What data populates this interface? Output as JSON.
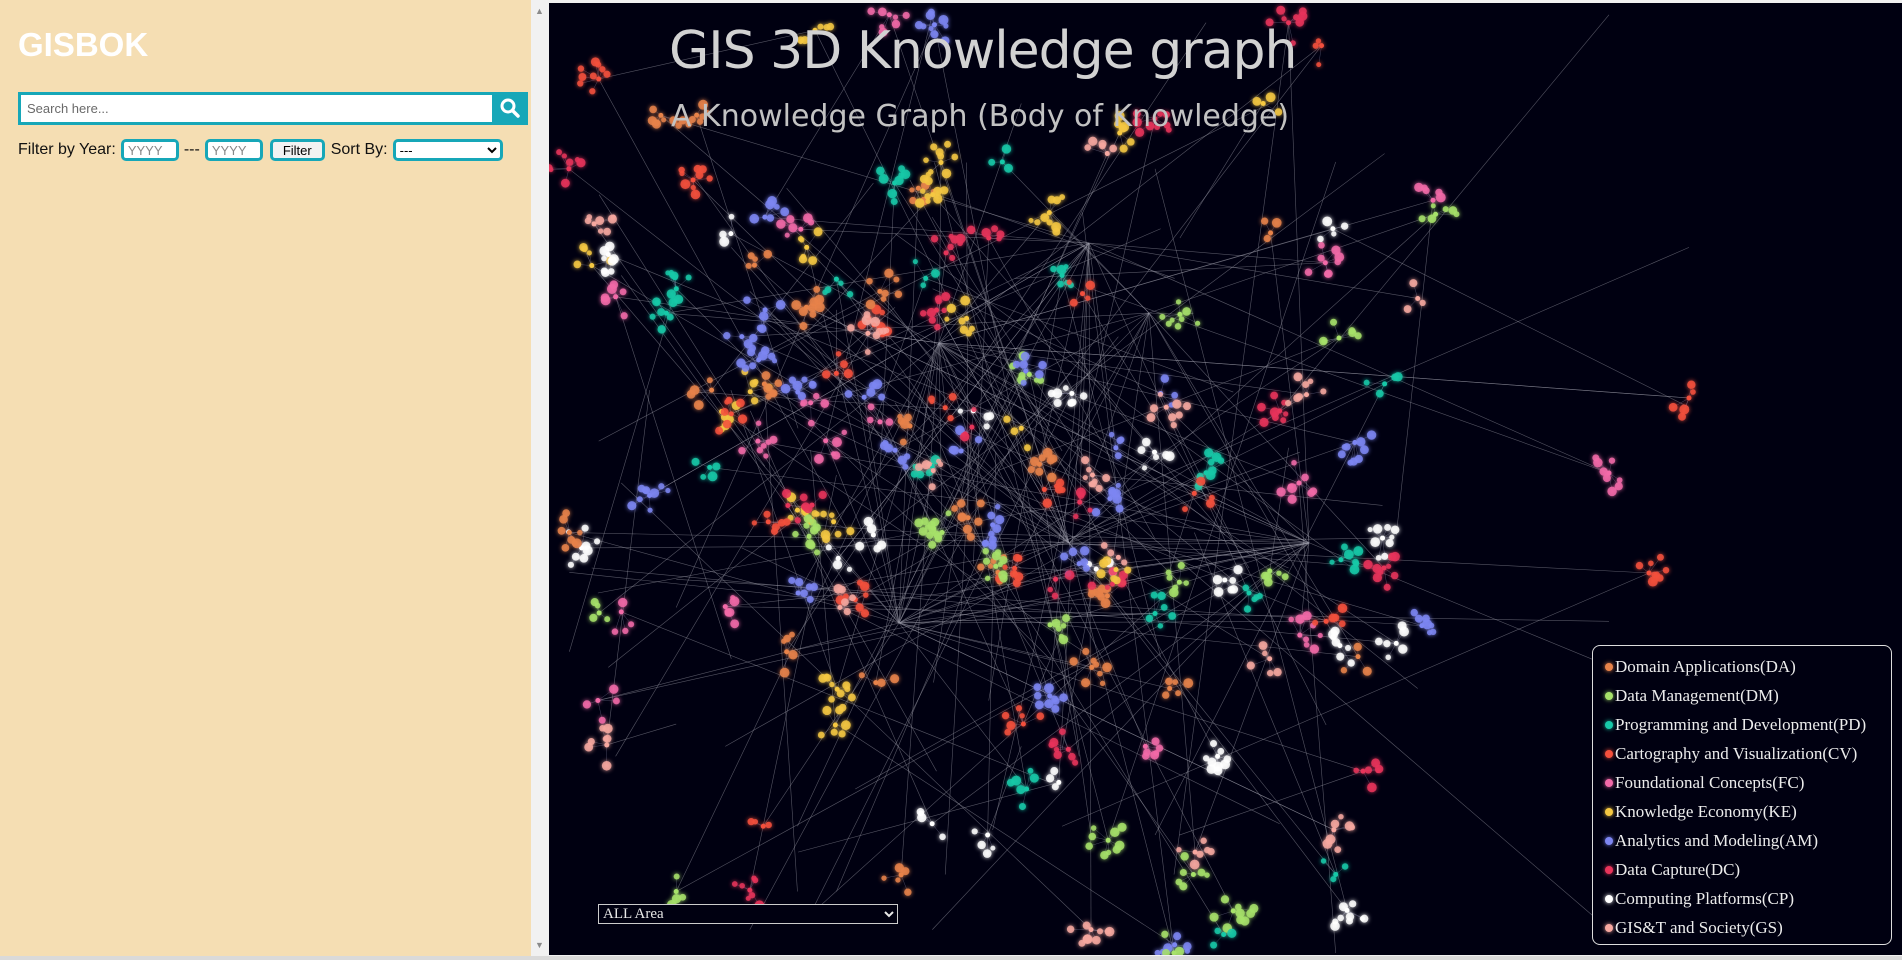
{
  "sidebar": {
    "brand": "GISBOK",
    "search": {
      "placeholder": "Search here...",
      "value": ""
    },
    "filter": {
      "label": "Filter by Year:",
      "year_from_placeholder": "YYYY",
      "separator": "---",
      "year_to_placeholder": "YYYY",
      "button_label": "Filter",
      "sort_label": "Sort By:",
      "sort_selected": "---"
    }
  },
  "graph": {
    "title": "GIS 3D Knowledge graph",
    "subtitle": "A Knowledge Graph (Body of Knowledge)",
    "area_select": {
      "selected": "ALL Area"
    },
    "legend": [
      {
        "label": "Domain Applications(DA)",
        "color": "#e8834a"
      },
      {
        "label": "Data Management(DM)",
        "color": "#a7e26a"
      },
      {
        "label": "Programming and Development(PD)",
        "color": "#18c9a8"
      },
      {
        "label": "Cartography and Visualization(CV)",
        "color": "#f4503c"
      },
      {
        "label": "Foundational Concepts(FC)",
        "color": "#f26aa8"
      },
      {
        "label": "Knowledge Economy(KE)",
        "color": "#f5c842"
      },
      {
        "label": "Analytics and Modeling(AM)",
        "color": "#7d86f2"
      },
      {
        "label": "Data Capture(DC)",
        "color": "#e8345a"
      },
      {
        "label": "Computing Platforms(CP)",
        "color": "#ffffff"
      },
      {
        "label": "GIS&T and Society(GS)",
        "color": "#f7a8a0"
      }
    ]
  }
}
